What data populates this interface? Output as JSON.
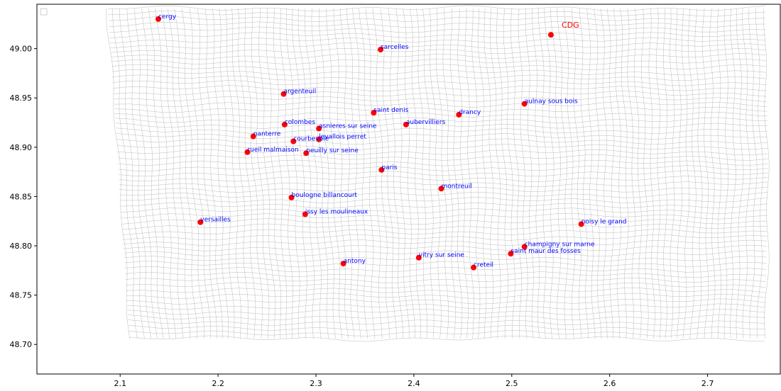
{
  "chart_data": {
    "type": "scatter",
    "title": "",
    "xlabel": "",
    "ylabel": "",
    "xlim": [
      2.015,
      2.775
    ],
    "ylim": [
      48.67,
      49.045
    ],
    "xticks": [
      2.1,
      2.2,
      2.3,
      2.4,
      2.5,
      2.6,
      2.7
    ],
    "xtick_labels": [
      "2.1",
      "2.2",
      "2.3",
      "2.4",
      "2.5",
      "2.6",
      "2.7"
    ],
    "yticks": [
      48.7,
      48.75,
      48.8,
      48.85,
      48.9,
      48.95,
      49.0
    ],
    "ytick_labels": [
      "48.70",
      "48.75",
      "48.80",
      "48.85",
      "48.90",
      "48.95",
      "49.00"
    ],
    "grid": false,
    "legend": "top-left (empty)",
    "marker_color": "#ff0000",
    "label_color": "#0000ff",
    "mesh_color": "#b4b4b4",
    "points": [
      {
        "name": "cergy",
        "x": 2.139,
        "y": 49.03
      },
      {
        "name": "CDG",
        "x": 2.54,
        "y": 49.014,
        "highlight": true
      },
      {
        "name": "sarcelles",
        "x": 2.366,
        "y": 48.999
      },
      {
        "name": "argenteuil",
        "x": 2.267,
        "y": 48.954
      },
      {
        "name": "aulnay sous bois",
        "x": 2.513,
        "y": 48.944
      },
      {
        "name": "saint denis",
        "x": 2.359,
        "y": 48.935
      },
      {
        "name": "drancy",
        "x": 2.446,
        "y": 48.933
      },
      {
        "name": "colombes",
        "x": 2.268,
        "y": 48.923
      },
      {
        "name": "aubervilliers",
        "x": 2.392,
        "y": 48.923
      },
      {
        "name": "asnieres sur seine",
        "x": 2.303,
        "y": 48.919
      },
      {
        "name": "nanterre",
        "x": 2.236,
        "y": 48.911
      },
      {
        "name": "levallois perret",
        "x": 2.303,
        "y": 48.908
      },
      {
        "name": "courbevoie",
        "x": 2.277,
        "y": 48.906
      },
      {
        "name": "rueil malmaison",
        "x": 2.23,
        "y": 48.895
      },
      {
        "name": "neuilly sur seine",
        "x": 2.29,
        "y": 48.894
      },
      {
        "name": "paris",
        "x": 2.367,
        "y": 48.877
      },
      {
        "name": "montreuil",
        "x": 2.428,
        "y": 48.858
      },
      {
        "name": "boulogne billancourt",
        "x": 2.275,
        "y": 48.849
      },
      {
        "name": "issy les moulineaux",
        "x": 2.289,
        "y": 48.832
      },
      {
        "name": "versailles",
        "x": 2.182,
        "y": 48.824
      },
      {
        "name": "noisy le grand",
        "x": 2.571,
        "y": 48.822
      },
      {
        "name": "champigny sur marne",
        "x": 2.513,
        "y": 48.799
      },
      {
        "name": "saint maur des fosses",
        "x": 2.499,
        "y": 48.792
      },
      {
        "name": "vitry sur seine",
        "x": 2.405,
        "y": 48.788
      },
      {
        "name": "antony",
        "x": 2.328,
        "y": 48.782
      },
      {
        "name": "creteil",
        "x": 2.461,
        "y": 48.778
      }
    ]
  }
}
